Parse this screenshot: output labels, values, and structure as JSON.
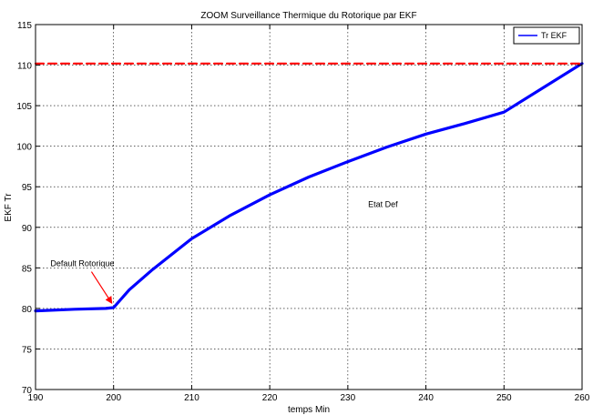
{
  "chart_data": {
    "type": "line",
    "title": "ZOOM Surveillance Thermique du Rotorique par EKF",
    "xlabel": "temps Min",
    "ylabel": "EKF Tr",
    "xlim": [
      190,
      260
    ],
    "ylim": [
      70,
      115
    ],
    "xticks": [
      190,
      200,
      210,
      220,
      230,
      240,
      250,
      260
    ],
    "yticks": [
      70,
      75,
      80,
      85,
      90,
      95,
      100,
      105,
      110,
      115
    ],
    "grid": true,
    "legend": {
      "position": "top-right",
      "entries": [
        "Tr EKF"
      ]
    },
    "series": [
      {
        "name": "Tr EKF",
        "color": "#0000ff",
        "x": [
          190,
          195,
          199,
          200,
          202,
          205,
          210,
          215,
          220,
          225,
          230,
          235,
          240,
          245,
          250,
          255,
          260
        ],
        "y": [
          79.7,
          79.9,
          80.0,
          80.1,
          82.3,
          84.8,
          88.6,
          91.5,
          94.0,
          96.2,
          98.1,
          99.9,
          101.5,
          102.8,
          104.2,
          107.2,
          110.2
        ]
      },
      {
        "name": "",
        "color": "#ff0000",
        "dashed": true,
        "x": [
          190,
          260
        ],
        "y": [
          110.2,
          110.2
        ]
      }
    ],
    "annotations": [
      {
        "id": "fault",
        "text": "Default Rotorique",
        "x": 196,
        "y": 85.2,
        "arrow_to": [
          200,
          80.2
        ]
      },
      {
        "id": "state",
        "text": "Etat Def",
        "x": 234.5,
        "y": 92.5
      }
    ]
  }
}
